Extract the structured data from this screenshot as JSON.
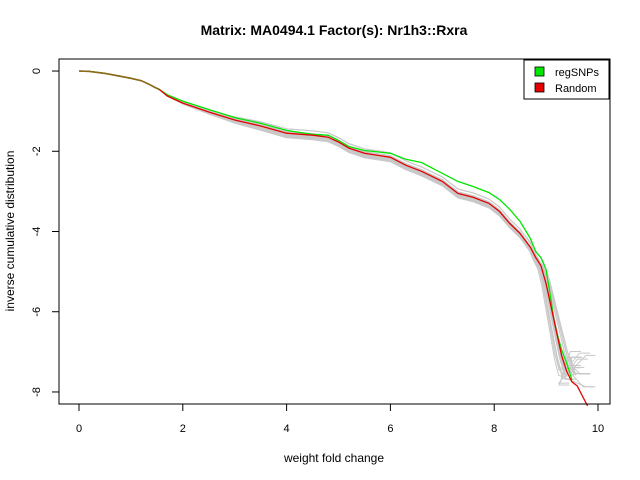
{
  "chart_data": {
    "type": "line",
    "title": "Matrix: MA0494.1 Factor(s): Nr1h3::Rxra",
    "xlabel": "weight fold change",
    "ylabel": "inverse cumulative distribution",
    "xlim": [
      0,
      10
    ],
    "ylim": [
      -8.3,
      0.3
    ],
    "x_ticks": [
      0,
      2,
      4,
      6,
      8,
      10
    ],
    "x_tick_labels": [
      "0",
      "2",
      "4",
      "6",
      "8",
      "10"
    ],
    "y_ticks": [
      0,
      -2,
      -4,
      -6,
      -8
    ],
    "y_tick_labels": [
      "0",
      "-2",
      "-4",
      "-6",
      "-8"
    ],
    "legend": {
      "position": "top-right",
      "entries": [
        {
          "label": "regSNPs",
          "color": "#00e600"
        },
        {
          "label": "Random",
          "color": "#e60000"
        }
      ]
    },
    "series": [
      {
        "name": "regSNPs",
        "color": "#00e600",
        "x": [
          0.0,
          0.2,
          0.5,
          0.8,
          1.0,
          1.2,
          1.35,
          1.45,
          1.55,
          1.7,
          2.0,
          2.5,
          3.0,
          3.5,
          4.0,
          4.5,
          4.8,
          5.0,
          5.2,
          5.5,
          6.0,
          6.3,
          6.6,
          7.0,
          7.3,
          7.6,
          7.9,
          8.1,
          8.3,
          8.5,
          8.7,
          8.8,
          8.9,
          9.0,
          9.1,
          9.15,
          9.2,
          9.3,
          9.4,
          9.5
        ],
        "y": [
          0.0,
          -0.01,
          -0.06,
          -0.13,
          -0.18,
          -0.24,
          -0.33,
          -0.4,
          -0.46,
          -0.59,
          -0.75,
          -0.96,
          -1.16,
          -1.3,
          -1.48,
          -1.58,
          -1.6,
          -1.73,
          -1.88,
          -1.98,
          -2.05,
          -2.2,
          -2.28,
          -2.55,
          -2.75,
          -2.88,
          -3.03,
          -3.2,
          -3.45,
          -3.75,
          -4.18,
          -4.5,
          -4.65,
          -4.95,
          -5.75,
          -6.2,
          -6.5,
          -6.95,
          -7.3,
          -7.7
        ]
      },
      {
        "name": "Random",
        "color": "#e60000",
        "x": [
          0.0,
          0.2,
          0.5,
          0.8,
          1.0,
          1.2,
          1.35,
          1.45,
          1.55,
          1.7,
          2.0,
          2.5,
          3.0,
          3.5,
          4.0,
          4.5,
          4.8,
          5.0,
          5.2,
          5.5,
          6.0,
          6.3,
          6.6,
          7.0,
          7.3,
          7.6,
          7.9,
          8.1,
          8.3,
          8.5,
          8.7,
          8.8,
          8.9,
          9.0,
          9.1,
          9.2,
          9.3,
          9.4,
          9.5,
          9.6,
          9.7,
          9.8
        ],
        "y": [
          0.0,
          -0.01,
          -0.06,
          -0.13,
          -0.18,
          -0.24,
          -0.33,
          -0.4,
          -0.46,
          -0.62,
          -0.8,
          -1.02,
          -1.22,
          -1.37,
          -1.55,
          -1.6,
          -1.65,
          -1.77,
          -1.92,
          -2.05,
          -2.15,
          -2.35,
          -2.5,
          -2.75,
          -3.05,
          -3.15,
          -3.3,
          -3.5,
          -3.8,
          -4.05,
          -4.4,
          -4.65,
          -4.85,
          -5.3,
          -5.9,
          -6.5,
          -7.1,
          -7.5,
          -7.75,
          -7.85,
          -8.1,
          -8.35
        ]
      }
    ],
    "background_band": {
      "name": "random-simulations",
      "color": "#c8c8c8",
      "count": 20
    }
  }
}
